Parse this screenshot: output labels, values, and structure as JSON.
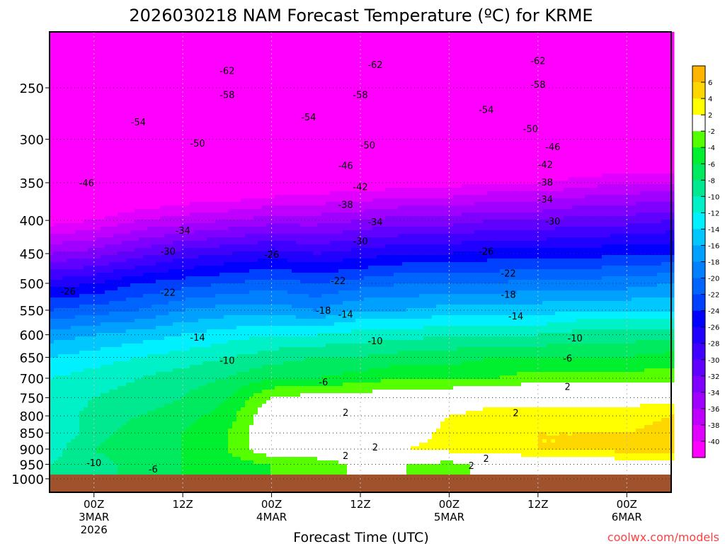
{
  "chart_data": {
    "type": "heatmap",
    "title": "2026030218 NAM Forecast Temperature (ºC) for KRME",
    "xlabel": "Forecast Time (UTC)",
    "ylabel": "",
    "credit": "coolwx.com/models",
    "xlim_hours": [
      0,
      84
    ],
    "ylim_hpa": [
      205,
      1049
    ],
    "y_ticks": [
      250,
      300,
      350,
      400,
      450,
      500,
      550,
      600,
      650,
      700,
      750,
      800,
      850,
      900,
      950,
      1000
    ],
    "x_ticks": [
      {
        "hour": 6,
        "lines": [
          "00Z",
          "3MAR",
          "2026"
        ]
      },
      {
        "hour": 18,
        "lines": [
          "12Z"
        ]
      },
      {
        "hour": 30,
        "lines": [
          "00Z",
          "4MAR"
        ]
      },
      {
        "hour": 42,
        "lines": [
          "12Z"
        ]
      },
      {
        "hour": 54,
        "lines": [
          "00Z",
          "5MAR"
        ]
      },
      {
        "hour": 66,
        "lines": [
          "12Z"
        ]
      },
      {
        "hour": 78,
        "lines": [
          "00Z",
          "6MAR"
        ]
      }
    ],
    "ground_below_hpa": 985,
    "grid_hours": [
      0,
      6,
      12,
      18,
      24,
      30,
      36,
      42,
      48,
      54,
      60,
      66,
      72,
      78,
      84
    ],
    "grid_levels": [
      200,
      250,
      300,
      350,
      400,
      450,
      500,
      550,
      600,
      650,
      700,
      750,
      800,
      850,
      900,
      950,
      1000
    ],
    "temperature_c": [
      [
        -64,
        -64,
        -64,
        -64,
        -64,
        -64,
        -64,
        -64,
        -64,
        -64,
        -64,
        -64,
        -64,
        -64,
        -64
      ],
      [
        -59,
        -59,
        -59,
        -59,
        -59,
        -59,
        -59,
        -59,
        -59,
        -59,
        -59,
        -59,
        -59,
        -59,
        -59
      ],
      [
        -52,
        -51,
        -51,
        -50,
        -50,
        -50,
        -50,
        -49,
        -49,
        -49,
        -48,
        -48,
        -47,
        -47,
        -47
      ],
      [
        -47,
        -46,
        -45,
        -44,
        -44,
        -43,
        -42,
        -42,
        -41,
        -41,
        -40,
        -40,
        -39,
        -38,
        -38
      ],
      [
        -41,
        -40,
        -38,
        -37,
        -36,
        -35,
        -35,
        -34,
        -33,
        -33,
        -32,
        -32,
        -31,
        -31,
        -30
      ],
      [
        -34,
        -33,
        -31,
        -29,
        -28,
        -27,
        -28,
        -27,
        -26,
        -26,
        -25,
        -25,
        -25,
        -24,
        -24
      ],
      [
        -27,
        -26,
        -24,
        -23,
        -22,
        -21,
        -22,
        -21,
        -20,
        -20,
        -20,
        -19,
        -19,
        -19,
        -18
      ],
      [
        -22,
        -21,
        -20,
        -18,
        -17,
        -17,
        -18,
        -16,
        -16,
        -15,
        -15,
        -15,
        -14,
        -14,
        -14
      ],
      [
        -17,
        -16,
        -15,
        -14,
        -13,
        -12,
        -12,
        -11,
        -11,
        -10,
        -10,
        -10,
        -9,
        -9,
        -9
      ],
      [
        -14,
        -13,
        -12,
        -11,
        -10,
        -9,
        -8,
        -8,
        -7,
        -7,
        -6,
        -6,
        -6,
        -6,
        -5
      ],
      [
        -12,
        -11,
        -10,
        -9,
        -8,
        -6,
        -6,
        -5,
        -4,
        -4,
        -4,
        -3,
        -3,
        -3,
        -3
      ],
      [
        -12,
        -10,
        -9,
        -8,
        -6,
        -2,
        -1,
        -1,
        0,
        0,
        1,
        1,
        1,
        1,
        1
      ],
      [
        -12,
        -9,
        -8,
        -7,
        -5,
        0,
        0,
        0,
        0,
        2,
        3,
        3,
        3,
        3,
        4
      ],
      [
        -12,
        -9,
        -7,
        -6,
        -4,
        0,
        0,
        1,
        0,
        3,
        4,
        4,
        4,
        4,
        5
      ],
      [
        -11,
        -8,
        -6,
        -6,
        -4,
        0,
        1,
        2,
        2,
        3,
        3,
        4,
        4,
        5,
        5
      ],
      [
        -10,
        -9,
        -7,
        -6,
        -5,
        -4,
        -4,
        -1,
        -2,
        -3,
        -1,
        0,
        -1,
        1,
        1
      ],
      [
        -10,
        -9,
        -7,
        -6,
        -5,
        -4,
        -4,
        -1,
        -2,
        -3,
        -1,
        0,
        -1,
        1,
        1
      ]
    ],
    "color_scale": [
      {
        "min": 6,
        "max": 99,
        "color": "#ffb400"
      },
      {
        "min": 4,
        "max": 6,
        "color": "#ffd700"
      },
      {
        "min": 2,
        "max": 4,
        "color": "#ffff00"
      },
      {
        "min": -2,
        "max": 2,
        "color": "#ffffff"
      },
      {
        "min": -4,
        "max": -2,
        "color": "#55ff00"
      },
      {
        "min": -6,
        "max": -4,
        "color": "#00f030"
      },
      {
        "min": -8,
        "max": -6,
        "color": "#00ea60"
      },
      {
        "min": -10,
        "max": -8,
        "color": "#00e890"
      },
      {
        "min": -12,
        "max": -10,
        "color": "#00f0c8"
      },
      {
        "min": -14,
        "max": -12,
        "color": "#00f0ff"
      },
      {
        "min": -16,
        "max": -14,
        "color": "#00c8ff"
      },
      {
        "min": -18,
        "max": -16,
        "color": "#00a0ff"
      },
      {
        "min": -20,
        "max": -18,
        "color": "#0080ff"
      },
      {
        "min": -22,
        "max": -20,
        "color": "#0064ff"
      },
      {
        "min": -24,
        "max": -22,
        "color": "#0040ff"
      },
      {
        "min": -26,
        "max": -24,
        "color": "#0000ff"
      },
      {
        "min": -28,
        "max": -26,
        "color": "#2000ff"
      },
      {
        "min": -30,
        "max": -28,
        "color": "#4000ff"
      },
      {
        "min": -32,
        "max": -30,
        "color": "#6000ff"
      },
      {
        "min": -34,
        "max": -32,
        "color": "#8000ff"
      },
      {
        "min": -36,
        "max": -34,
        "color": "#a000ff"
      },
      {
        "min": -38,
        "max": -36,
        "color": "#c000ff"
      },
      {
        "min": -40,
        "max": -38,
        "color": "#e000ff"
      },
      {
        "min": -99,
        "max": -40,
        "color": "#ff00ff"
      }
    ],
    "colorbar_labels": [
      "6",
      "4",
      "2",
      "-2",
      "-4",
      "-6",
      "-8",
      "-10",
      "-12",
      "-14",
      "-16",
      "-18",
      "-20",
      "-22",
      "-24",
      "-26",
      "-28",
      "-30",
      "-32",
      "-34",
      "-36",
      "-38",
      "-40"
    ],
    "contour_labels": [
      {
        "text": "-62",
        "hour": 24,
        "hpa": 235
      },
      {
        "text": "-62",
        "hour": 44,
        "hpa": 230
      },
      {
        "text": "-62",
        "hour": 66,
        "hpa": 227
      },
      {
        "text": "-58",
        "hour": 24,
        "hpa": 256
      },
      {
        "text": "-58",
        "hour": 42,
        "hpa": 256
      },
      {
        "text": "-58",
        "hour": 66,
        "hpa": 247
      },
      {
        "text": "-54",
        "hour": 12,
        "hpa": 282
      },
      {
        "text": "-54",
        "hour": 35,
        "hpa": 277
      },
      {
        "text": "-54",
        "hour": 59,
        "hpa": 270
      },
      {
        "text": "-50",
        "hour": 20,
        "hpa": 304
      },
      {
        "text": "-50",
        "hour": 43,
        "hpa": 306
      },
      {
        "text": "-50",
        "hour": 65,
        "hpa": 289
      },
      {
        "text": "-46",
        "hour": 5,
        "hpa": 350
      },
      {
        "text": "-46",
        "hour": 40,
        "hpa": 329
      },
      {
        "text": "-46",
        "hour": 68,
        "hpa": 308
      },
      {
        "text": "-42",
        "hour": 42,
        "hpa": 355
      },
      {
        "text": "-42",
        "hour": 67,
        "hpa": 328
      },
      {
        "text": "-38",
        "hour": 40,
        "hpa": 378
      },
      {
        "text": "-38",
        "hour": 67,
        "hpa": 349
      },
      {
        "text": "-34",
        "hour": 18,
        "hpa": 414
      },
      {
        "text": "-34",
        "hour": 44,
        "hpa": 402
      },
      {
        "text": "-34",
        "hour": 67,
        "hpa": 371
      },
      {
        "text": "-30",
        "hour": 16,
        "hpa": 446
      },
      {
        "text": "-30",
        "hour": 42,
        "hpa": 430
      },
      {
        "text": "-30",
        "hour": 68,
        "hpa": 401
      },
      {
        "text": "-26",
        "hour": 2.5,
        "hpa": 514
      },
      {
        "text": "-26",
        "hour": 30,
        "hpa": 451
      },
      {
        "text": "-26",
        "hour": 59,
        "hpa": 446
      },
      {
        "text": "-22",
        "hour": 16,
        "hpa": 516
      },
      {
        "text": "-22",
        "hour": 39,
        "hpa": 495
      },
      {
        "text": "-22",
        "hour": 62,
        "hpa": 482
      },
      {
        "text": "-18",
        "hour": 37,
        "hpa": 550
      },
      {
        "text": "-18",
        "hour": 62,
        "hpa": 520
      },
      {
        "text": "-14",
        "hour": 20,
        "hpa": 605
      },
      {
        "text": "-14",
        "hour": 40,
        "hpa": 558
      },
      {
        "text": "-14",
        "hour": 63,
        "hpa": 561
      },
      {
        "text": "-10",
        "hour": 24,
        "hpa": 657
      },
      {
        "text": "-10",
        "hour": 44,
        "hpa": 613
      },
      {
        "text": "-10",
        "hour": 71,
        "hpa": 607
      },
      {
        "text": "-10",
        "hour": 6,
        "hpa": 944
      },
      {
        "text": "-6",
        "hour": 37,
        "hpa": 709
      },
      {
        "text": "-6",
        "hour": 70,
        "hpa": 652
      },
      {
        "text": "-6",
        "hour": 14,
        "hpa": 965
      },
      {
        "text": "2",
        "hour": 40,
        "hpa": 790
      },
      {
        "text": "2",
        "hour": 70,
        "hpa": 721
      },
      {
        "text": "2",
        "hour": 63,
        "hpa": 791
      },
      {
        "text": "2",
        "hour": 44,
        "hpa": 893
      },
      {
        "text": "2",
        "hour": 40,
        "hpa": 920
      },
      {
        "text": "2",
        "hour": 59,
        "hpa": 930
      },
      {
        "text": "2",
        "hour": 57,
        "hpa": 953
      }
    ]
  }
}
